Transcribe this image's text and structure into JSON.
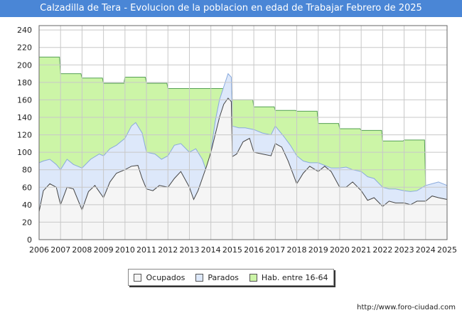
{
  "title": "Calzadilla de Tera - Evolucion de la poblacion en edad de Trabajar Febrero de 2025",
  "source": "http://www.foro-ciudad.com",
  "colors": {
    "hab": "#ccf5a7",
    "hab_line": "#55a055",
    "parados": "#dde8fa",
    "parados_line": "#8aaadd",
    "ocupados": "#f5f5f5",
    "ocupados_line": "#444444",
    "grid": "#c8c8c8"
  },
  "chart_data": {
    "type": "area",
    "title": "Calzadilla de Tera - Evolucion de la poblacion en edad de Trabajar Febrero de 2025",
    "xlabel": "",
    "ylabel": "",
    "xlim": [
      2006,
      2025
    ],
    "ylim": [
      0,
      245
    ],
    "yticks": [
      0,
      20,
      40,
      60,
      80,
      100,
      120,
      140,
      160,
      180,
      200,
      220,
      240
    ],
    "xtick_labels": [
      "2006",
      "2007",
      "2008",
      "2009",
      "2010",
      "2011",
      "2012",
      "2013",
      "2014",
      "2015",
      "2016",
      "2017",
      "2018",
      "2019",
      "2020",
      "2021",
      "2022",
      "2023",
      "2024",
      "2025"
    ],
    "legend": [
      "Ocupados",
      "Parados",
      "Hab. entre 16-64"
    ],
    "series": [
      {
        "name": "Hab. entre 16-64",
        "color": "#ccf5a7",
        "x": [
          2006,
          2006.95,
          2007,
          2007.95,
          2008,
          2008.95,
          2009,
          2009.95,
          2010,
          2010.95,
          2011,
          2011.95,
          2012,
          2012.95,
          2013,
          2013.95,
          2014,
          2014.95,
          2015,
          2015.95,
          2016,
          2016.95,
          2017,
          2017.95,
          2018,
          2018.95,
          2019,
          2019.95,
          2020,
          2020.95,
          2021,
          2021.95,
          2022,
          2022.95,
          2023,
          2023.95,
          2024,
          2025
        ],
        "values": [
          209,
          209,
          190,
          190,
          185,
          185,
          179,
          179,
          186,
          186,
          179,
          179,
          173,
          173,
          173,
          173,
          173,
          173,
          160,
          160,
          152,
          152,
          148,
          148,
          147,
          147,
          133,
          133,
          127,
          127,
          125,
          125,
          113,
          113,
          114,
          114,
          61,
          61
        ]
      },
      {
        "name": "Parados",
        "color": "#dde8fa",
        "x": [
          2006,
          2006.2,
          2006.5,
          2006.8,
          2007,
          2007.3,
          2007.6,
          2008,
          2008.4,
          2008.8,
          2009,
          2009.3,
          2009.6,
          2010,
          2010.3,
          2010.5,
          2010.8,
          2011,
          2011.4,
          2011.7,
          2012,
          2012.3,
          2012.6,
          2013,
          2013.3,
          2013.6,
          2013.8,
          2014,
          2014.2,
          2014.4,
          2014.6,
          2014.8,
          2014.95,
          2015,
          2015.3,
          2015.6,
          2016,
          2016.4,
          2016.8,
          2017,
          2017.4,
          2017.7,
          2018,
          2018.3,
          2018.6,
          2019,
          2019.3,
          2019.6,
          2020,
          2020.3,
          2020.6,
          2021,
          2021.3,
          2021.6,
          2022,
          2022.3,
          2022.6,
          2023,
          2023.3,
          2023.6,
          2024,
          2024.3,
          2024.6,
          2025
        ],
        "values": [
          88,
          90,
          92,
          86,
          80,
          92,
          86,
          82,
          92,
          98,
          96,
          104,
          108,
          116,
          130,
          134,
          122,
          100,
          98,
          92,
          96,
          108,
          110,
          100,
          104,
          92,
          78,
          100,
          135,
          160,
          175,
          190,
          186,
          130,
          128,
          128,
          126,
          122,
          120,
          130,
          118,
          108,
          96,
          90,
          88,
          88,
          85,
          82,
          82,
          83,
          80,
          78,
          72,
          70,
          60,
          58,
          58,
          56,
          55,
          56,
          62,
          64,
          66,
          62
        ]
      },
      {
        "name": "Ocupados",
        "color": "#f5f5f5",
        "x": [
          2006,
          2006.2,
          2006.5,
          2006.8,
          2007,
          2007.3,
          2007.6,
          2008,
          2008.3,
          2008.6,
          2009,
          2009.3,
          2009.6,
          2010,
          2010.3,
          2010.6,
          2010.8,
          2011,
          2011.3,
          2011.6,
          2012,
          2012.3,
          2012.6,
          2013,
          2013.2,
          2013.4,
          2013.6,
          2013.8,
          2014,
          2014.2,
          2014.4,
          2014.6,
          2014.8,
          2014.95,
          2015,
          2015.2,
          2015.5,
          2015.8,
          2016,
          2016.4,
          2016.8,
          2017,
          2017.3,
          2017.6,
          2018,
          2018.3,
          2018.6,
          2019,
          2019.3,
          2019.6,
          2020,
          2020.3,
          2020.6,
          2021,
          2021.3,
          2021.6,
          2022,
          2022.3,
          2022.6,
          2023,
          2023.3,
          2023.6,
          2024,
          2024.3,
          2024.6,
          2025
        ],
        "values": [
          32,
          56,
          64,
          60,
          40,
          60,
          58,
          34,
          55,
          62,
          48,
          66,
          76,
          80,
          84,
          85,
          70,
          58,
          56,
          62,
          60,
          70,
          78,
          60,
          46,
          56,
          70,
          84,
          100,
          120,
          140,
          155,
          162,
          158,
          95,
          98,
          112,
          116,
          100,
          98,
          96,
          110,
          106,
          90,
          64,
          76,
          84,
          78,
          84,
          78,
          60,
          60,
          66,
          56,
          45,
          48,
          38,
          44,
          42,
          42,
          40,
          44,
          44,
          50,
          48,
          46
        ]
      }
    ]
  }
}
